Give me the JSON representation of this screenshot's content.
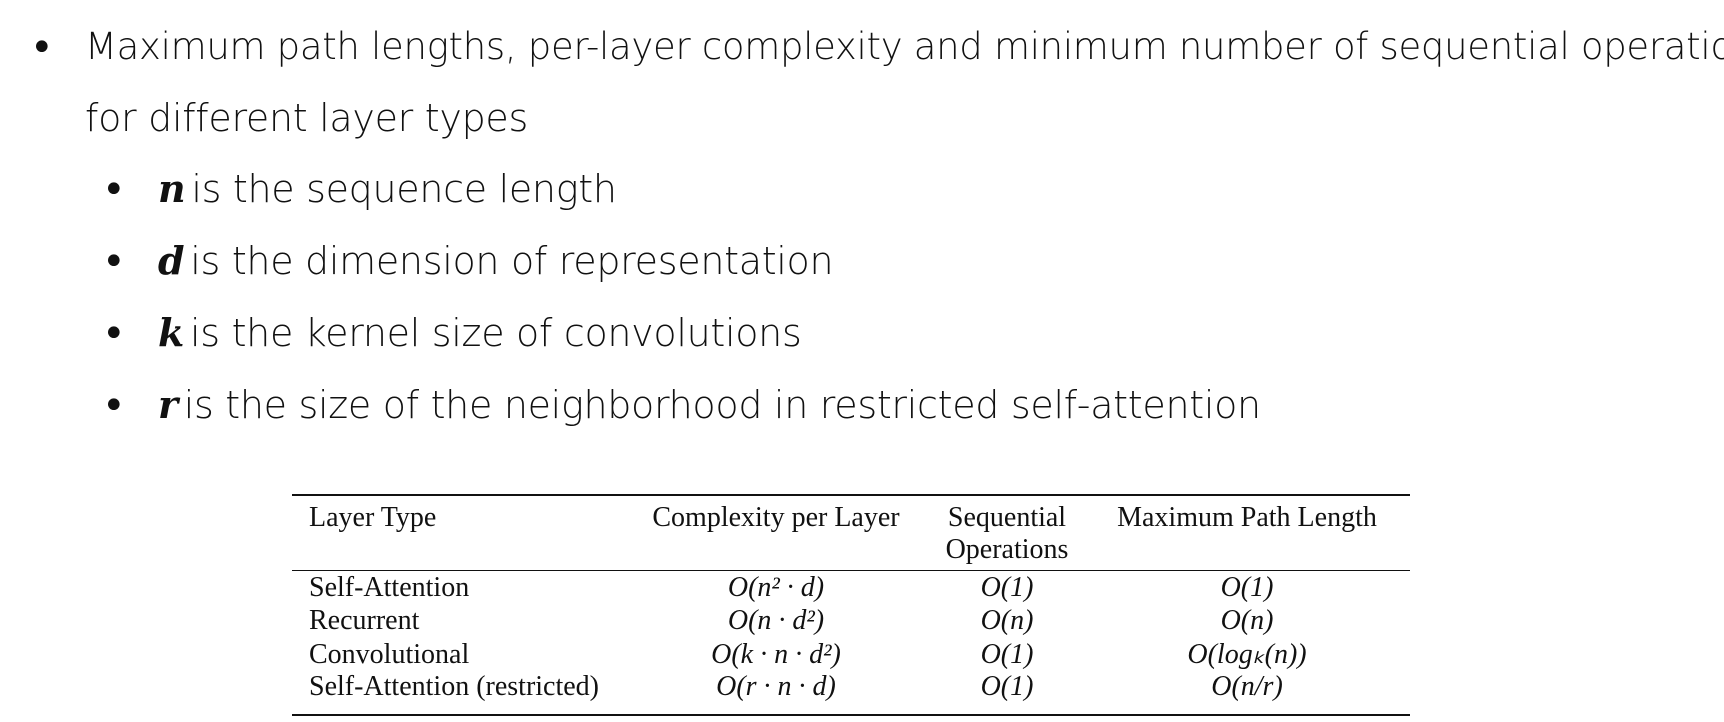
{
  "main_bullet": {
    "line1": "Maximum path lengths, per-layer complexity and minimum number of sequential operations",
    "line2": "for different layer types"
  },
  "sub_bullets": [
    {
      "var": "n",
      "text": "is the sequence length"
    },
    {
      "var": "d",
      "text": "is the dimension of representation"
    },
    {
      "var": "k",
      "text": "is the kernel size of convolutions"
    },
    {
      "var": "r",
      "text": "is the size of the neighborhood in restricted self-attention"
    }
  ],
  "table": {
    "headers": {
      "layer_type": "Layer Type",
      "complexity": "Complexity per Layer",
      "sequential_1": "Sequential",
      "sequential_2": "Operations",
      "path_length": "Maximum Path Length"
    },
    "rows": [
      {
        "layer": "Self-Attention",
        "complexity": "O(n² · d)",
        "sequential": "O(1)",
        "path": "O(1)"
      },
      {
        "layer": "Recurrent",
        "complexity": "O(n · d²)",
        "sequential": "O(n)",
        "path": "O(n)"
      },
      {
        "layer": "Convolutional",
        "complexity": "O(k · n · d²)",
        "sequential": "O(1)",
        "path": "O(logₖ(n))"
      },
      {
        "layer": "Self-Attention (restricted)",
        "complexity": "O(r · n · d)",
        "sequential": "O(1)",
        "path": "O(n/r)"
      }
    ]
  }
}
